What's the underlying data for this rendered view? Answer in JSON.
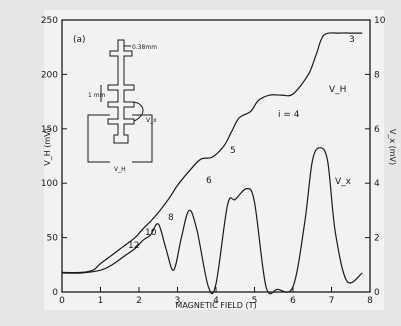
{
  "chart_data": {
    "type": "line",
    "panel_label": "(a)",
    "xlabel": "MAGNETIC FIELD   (T)",
    "ylabel_left": "V_H   (mV)",
    "ylabel_right": "V_x   (mV)",
    "xlim": [
      0,
      8
    ],
    "ylim_left": [
      0,
      250
    ],
    "ylim_right": [
      0,
      10
    ],
    "x_ticks": [
      "0",
      "1",
      "2",
      "3",
      "4",
      "5",
      "6",
      "7",
      "8"
    ],
    "y_left_ticks": [
      "0",
      "50",
      "100",
      "150",
      "200",
      "250"
    ],
    "y_right_ticks": [
      "0",
      "2",
      "4",
      "6",
      "8",
      "10"
    ],
    "series": [
      {
        "name": "V_H",
        "axis": "left",
        "x": [
          0,
          0.5,
          0.8,
          1.0,
          1.3,
          1.6,
          1.9,
          2.1,
          2.3,
          2.5,
          2.8,
          3.0,
          3.3,
          3.6,
          3.9,
          4.2,
          4.4,
          4.6,
          4.9,
          5.1,
          5.4,
          5.7,
          6.0,
          6.4,
          6.6,
          6.8,
          7.2,
          7.5,
          7.8
        ],
        "y": [
          18,
          18,
          20,
          26,
          34,
          42,
          50,
          58,
          65,
          73,
          87,
          98,
          111,
          122,
          124,
          134,
          147,
          160,
          166,
          176,
          181,
          181,
          182,
          200,
          218,
          236,
          238,
          238,
          238
        ]
      },
      {
        "name": "V_x",
        "axis": "right",
        "x": [
          0,
          0.5,
          1.0,
          1.3,
          1.6,
          1.9,
          2.1,
          2.3,
          2.5,
          2.7,
          2.9,
          3.1,
          3.3,
          3.5,
          3.8,
          4.0,
          4.3,
          4.5,
          4.8,
          5.0,
          5.3,
          5.6,
          6.0,
          6.3,
          6.5,
          6.7,
          6.9,
          7.1,
          7.4,
          7.8
        ],
        "y": [
          0.7,
          0.7,
          0.8,
          1.0,
          1.3,
          1.6,
          1.9,
          2.1,
          2.5,
          1.6,
          0.8,
          2.0,
          3.0,
          2.3,
          0.2,
          0.3,
          3.2,
          3.4,
          3.8,
          3.3,
          0.2,
          0.1,
          0.2,
          2.5,
          4.8,
          5.3,
          4.8,
          2.2,
          0.4,
          0.7
        ]
      }
    ],
    "annotations": {
      "filling_factors": [
        "12",
        "10",
        "8",
        "6",
        "5",
        "i = 4",
        "3"
      ],
      "series_labels": [
        "V_H",
        "V_x"
      ],
      "inset": {
        "width_label": "0.38mm",
        "length_label": "1 mm",
        "vx_label": "V_x",
        "vh_label": "V_H"
      }
    },
    "grid": false,
    "legend": "none"
  }
}
